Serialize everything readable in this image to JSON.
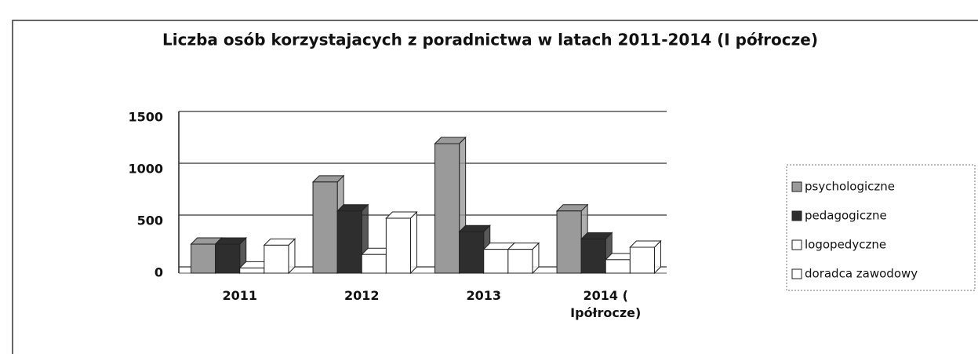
{
  "chart_data": {
    "type": "bar",
    "title": "Liczba osób korzystajacych z poradnictwa w latach 2011-2014 (I półrocze)",
    "categories": [
      "2011",
      "2012",
      "2013",
      "2014 ( Ipółrocze)"
    ],
    "series": [
      {
        "name": "psychologiczne",
        "color": "#9a9a9a",
        "values": [
          280,
          880,
          1250,
          600
        ]
      },
      {
        "name": "pedagogiczne",
        "color": "#2e2e2e",
        "values": [
          280,
          600,
          400,
          330
        ]
      },
      {
        "name": "logopedyczne",
        "color": "#ffffff",
        "values": [
          50,
          180,
          230,
          130
        ]
      },
      {
        "name": "doradca zawodowy",
        "color": "#ffffff",
        "values": [
          270,
          530,
          230,
          250
        ]
      }
    ],
    "ylim": [
      0,
      1500
    ],
    "yticks": [
      0,
      500,
      1000,
      1500
    ],
    "grid": true,
    "legend": "right"
  }
}
